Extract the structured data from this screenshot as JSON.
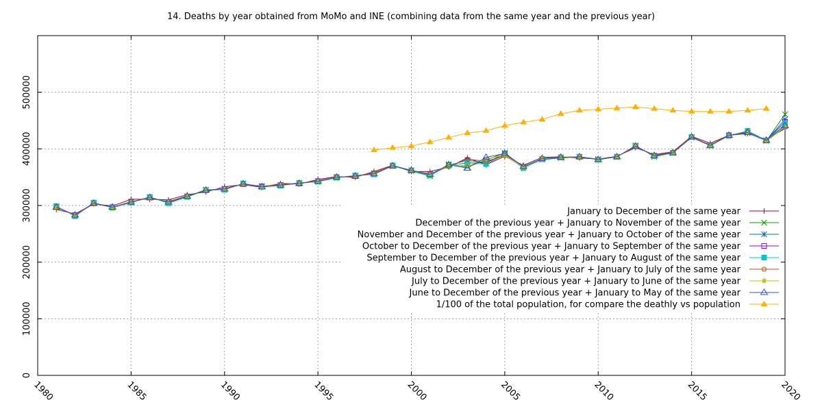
{
  "chart_data": {
    "type": "line",
    "title": "14. Deaths by year obtained from MoMo and INE (combining data from the same year and the previous year)",
    "xlabel": "",
    "ylabel": "",
    "xlim": [
      1980,
      2020
    ],
    "ylim": [
      0,
      600000
    ],
    "x_ticks": [
      "1980",
      "1985",
      "1990",
      "1995",
      "2000",
      "2005",
      "2010",
      "2015",
      "2020"
    ],
    "y_ticks": [
      "0",
      "100000",
      "200000",
      "300000",
      "400000",
      "500000"
    ],
    "grid": true,
    "legend_position": "right",
    "series": [
      {
        "name": "January to December of the same year",
        "color": "#a0002e",
        "marker": "plus",
        "x": [
          1981,
          1982,
          1983,
          1984,
          1985,
          1986,
          1987,
          1988,
          1989,
          1990,
          1991,
          1992,
          1993,
          1994,
          1995,
          1996,
          1997,
          1998,
          1999,
          2000,
          2001,
          2002,
          2003,
          2004,
          2005,
          2006,
          2007,
          2008,
          2009,
          2010,
          2011,
          2012,
          2013,
          2014,
          2015,
          2016,
          2017,
          2018,
          2019,
          2020
        ],
        "values": [
          293000,
          285000,
          303000,
          299000,
          311000,
          311000,
          310000,
          319000,
          324000,
          333000,
          337000,
          332000,
          339000,
          338000,
          346000,
          351000,
          350000,
          360000,
          371000,
          360000,
          360000,
          368000,
          384000,
          372000,
          387000,
          371000,
          385000,
          386000,
          384000,
          382000,
          387000,
          402000,
          390000,
          395000,
          422000,
          410000,
          424000,
          427000,
          417000,
          436000
        ]
      },
      {
        "name": "December of the previous year + January to November of the same year",
        "color": "#00a000",
        "marker": "cross",
        "x": [
          1981,
          1982,
          1983,
          1984,
          1985,
          1986,
          1987,
          1988,
          1989,
          1990,
          1991,
          1992,
          1993,
          1994,
          1995,
          1996,
          1997,
          1998,
          1999,
          2000,
          2001,
          2002,
          2003,
          2004,
          2005,
          2006,
          2007,
          2008,
          2009,
          2010,
          2011,
          2012,
          2013,
          2014,
          2015,
          2016,
          2017,
          2018,
          2019,
          2020
        ],
        "values": [
          298000,
          282000,
          305000,
          296000,
          306000,
          315000,
          305000,
          316000,
          328000,
          328000,
          339000,
          333000,
          336000,
          340000,
          342000,
          349000,
          353000,
          355000,
          370000,
          361000,
          352000,
          373000,
          368000,
          380000,
          393000,
          367000,
          381000,
          384000,
          386000,
          381000,
          386000,
          406000,
          386000,
          393000,
          420000,
          406000,
          424000,
          428000,
          414000,
          461000
        ]
      },
      {
        "name": "November and December of the previous year + January to October of the same year",
        "color": "#0072b2",
        "marker": "star",
        "x": [
          1981,
          1982,
          1983,
          1984,
          1985,
          1986,
          1987,
          1988,
          1989,
          1990,
          1991,
          1992,
          1993,
          1994,
          1995,
          1996,
          1997,
          1998,
          1999,
          2000,
          2001,
          2002,
          2003,
          2004,
          2005,
          2006,
          2007,
          2008,
          2009,
          2010,
          2011,
          2012,
          2013,
          2014,
          2015,
          2016,
          2017,
          2018,
          2019,
          2020
        ],
        "values": [
          297000,
          283000,
          304000,
          297000,
          306000,
          314000,
          306000,
          316000,
          327000,
          330000,
          338000,
          334000,
          336000,
          339000,
          343000,
          350000,
          352000,
          357000,
          370000,
          362000,
          354000,
          371000,
          380000,
          375000,
          391000,
          369000,
          382000,
          385000,
          386000,
          382000,
          386000,
          405000,
          388000,
          393000,
          421000,
          406000,
          424000,
          428000,
          415000,
          452000
        ]
      },
      {
        "name": "October to December of the previous year + January to September of the same year",
        "color": "#9400d3",
        "marker": "open-square",
        "x": [
          1981,
          1982,
          1983,
          1984,
          1985,
          1986,
          1987,
          1988,
          1989,
          1990,
          1991,
          1992,
          1993,
          1994,
          1995,
          1996,
          1997,
          1998,
          1999,
          2000,
          2001,
          2002,
          2003,
          2004,
          2005,
          2006,
          2007,
          2008,
          2009,
          2010,
          2011,
          2012,
          2013,
          2014,
          2015,
          2016,
          2017,
          2018,
          2019,
          2020
        ],
        "values": [
          298000,
          283000,
          304000,
          297000,
          306000,
          314000,
          305000,
          316000,
          327000,
          329000,
          338000,
          334000,
          336000,
          339000,
          343000,
          350000,
          352000,
          356000,
          370000,
          362000,
          353000,
          371000,
          375000,
          376000,
          391000,
          368000,
          382000,
          385000,
          386000,
          381000,
          386000,
          405000,
          388000,
          393000,
          421000,
          406000,
          424000,
          430000,
          415000,
          448000
        ]
      },
      {
        "name": "September to December of the previous year + January to August of the same year",
        "color": "#00c8c8",
        "marker": "filled-square",
        "x": [
          1981,
          1982,
          1983,
          1984,
          1985,
          1986,
          1987,
          1988,
          1989,
          1990,
          1991,
          1992,
          1993,
          1994,
          1995,
          1996,
          1997,
          1998,
          1999,
          2000,
          2001,
          2002,
          2003,
          2004,
          2005,
          2006,
          2007,
          2008,
          2009,
          2010,
          2011,
          2012,
          2013,
          2014,
          2015,
          2016,
          2017,
          2018,
          2019,
          2020
        ],
        "values": [
          299000,
          281000,
          305000,
          296000,
          305000,
          315000,
          304000,
          315000,
          327000,
          328000,
          339000,
          333000,
          335000,
          340000,
          342000,
          349000,
          353000,
          355000,
          371000,
          362000,
          353000,
          370000,
          376000,
          373000,
          390000,
          366000,
          382000,
          385000,
          386000,
          381000,
          386000,
          405000,
          387000,
          393000,
          421000,
          406000,
          423000,
          432000,
          415000,
          444000
        ]
      },
      {
        "name": "August to December of the previous year + January to July of the same year",
        "color": "#b05010",
        "marker": "open-circle",
        "x": [
          1981,
          1982,
          1983,
          1984,
          1985,
          1986,
          1987,
          1988,
          1989,
          1990,
          1991,
          1992,
          1993,
          1994,
          1995,
          1996,
          1997,
          1998,
          1999,
          2000,
          2001,
          2002,
          2003,
          2004,
          2005,
          2006,
          2007,
          2008,
          2009,
          2010,
          2011,
          2012,
          2013,
          2014,
          2015,
          2016,
          2017,
          2018,
          2019,
          2020
        ],
        "values": [
          297000,
          283000,
          303000,
          297000,
          307000,
          313000,
          307000,
          317000,
          326000,
          330000,
          338000,
          334000,
          337000,
          339000,
          344000,
          350000,
          352000,
          358000,
          370000,
          362000,
          356000,
          369000,
          382000,
          378000,
          388000,
          368000,
          383000,
          385000,
          385000,
          382000,
          386000,
          404000,
          389000,
          394000,
          421000,
          407000,
          424000,
          430000,
          414000,
          438000
        ]
      },
      {
        "name": "July to December of the previous year + January to June of the same year",
        "color": "#c0c000",
        "marker": "filled-star",
        "x": [
          1981,
          1982,
          1983,
          1984,
          1985,
          1986,
          1987,
          1988,
          1989,
          1990,
          1991,
          1992,
          1993,
          1994,
          1995,
          1996,
          1997,
          1998,
          1999,
          2000,
          2001,
          2002,
          2003,
          2004,
          2005,
          2006,
          2007,
          2008,
          2009,
          2010,
          2011,
          2012,
          2013,
          2014,
          2015,
          2016,
          2017,
          2018,
          2019,
          2020
        ],
        "values": [
          297000,
          283000,
          304000,
          296000,
          306000,
          314000,
          306000,
          316000,
          327000,
          329000,
          338000,
          333000,
          336000,
          339000,
          343000,
          350000,
          352000,
          356000,
          370000,
          362000,
          355000,
          371000,
          370000,
          382000,
          389000,
          368000,
          383000,
          385000,
          386000,
          381000,
          386000,
          405000,
          388000,
          393000,
          421000,
          406000,
          424000,
          429000,
          414000,
          439000
        ]
      },
      {
        "name": "June to December of the previous year + January to May of the same year",
        "color": "#3050d0",
        "marker": "open-triangle",
        "x": [
          1981,
          1982,
          1983,
          1984,
          1985,
          1986,
          1987,
          1988,
          1989,
          1990,
          1991,
          1992,
          1993,
          1994,
          1995,
          1996,
          1997,
          1998,
          1999,
          2000,
          2001,
          2002,
          2003,
          2004,
          2005,
          2006,
          2007,
          2008,
          2009,
          2010,
          2011,
          2012,
          2013,
          2014,
          2015,
          2016,
          2017,
          2018,
          2019,
          2020
        ],
        "values": [
          297000,
          283000,
          304000,
          297000,
          306000,
          314000,
          306000,
          316000,
          327000,
          329000,
          338000,
          333000,
          336000,
          339000,
          343000,
          350000,
          352000,
          356000,
          370000,
          362000,
          355000,
          372000,
          366000,
          385000,
          392000,
          369000,
          383000,
          385000,
          386000,
          381000,
          386000,
          405000,
          388000,
          393000,
          421000,
          406000,
          424000,
          429000,
          415000,
          441000
        ]
      },
      {
        "name": "1/100 of the total population, for compare the deathly vs population",
        "color": "#ffb000",
        "marker": "filled-triangle",
        "x": [
          1998,
          1999,
          2000,
          2001,
          2002,
          2003,
          2004,
          2005,
          2006,
          2007,
          2008,
          2009,
          2010,
          2011,
          2012,
          2013,
          2014,
          2015,
          2016,
          2017,
          2018,
          2019
        ],
        "values": [
          398000,
          402000,
          405000,
          412000,
          420000,
          428000,
          432000,
          441000,
          447000,
          452000,
          462000,
          468000,
          470000,
          472000,
          474000,
          471000,
          468000,
          466000,
          466000,
          466000,
          468000,
          471000
        ]
      }
    ]
  }
}
